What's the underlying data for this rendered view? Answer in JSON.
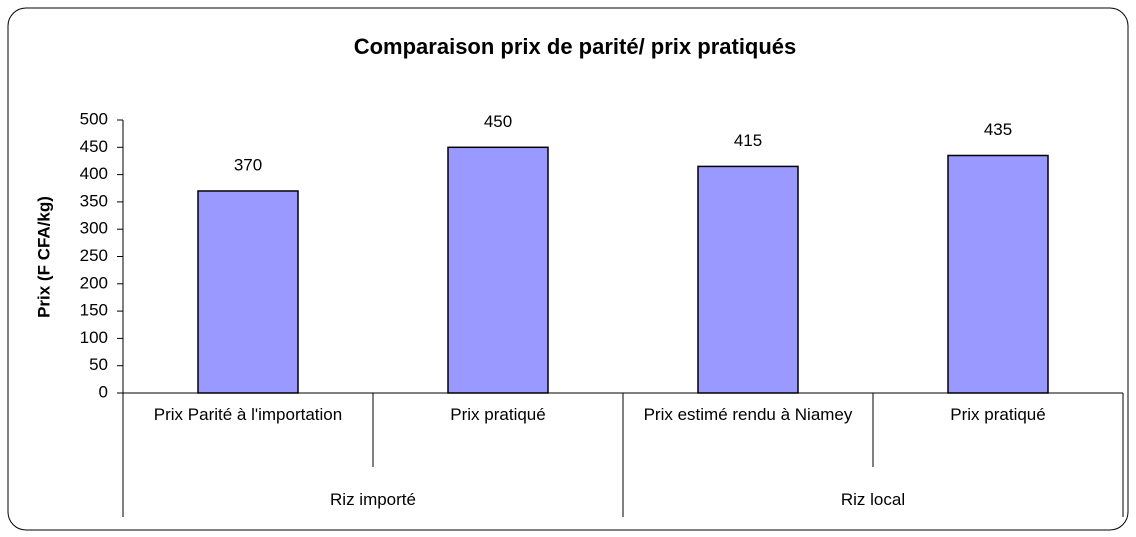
{
  "chart_data": {
    "type": "bar",
    "title": "Comparaison prix de parité/ prix pratiqués",
    "y_label": "Prix (F CFA/kg)",
    "groups": [
      {
        "label": "Riz importé",
        "categories": [
          "Prix Parité à l'importation",
          "Prix pratiqué"
        ],
        "values": [
          370,
          450
        ]
      },
      {
        "label": "Riz local",
        "categories": [
          "Prix estimé rendu à Niamey",
          "Prix pratiqué"
        ],
        "values": [
          415,
          435
        ]
      }
    ],
    "color": "#9999ff",
    "ylim": [
      0,
      500
    ],
    "yticks": [
      0,
      50,
      100,
      150,
      200,
      250,
      300,
      350,
      400,
      450,
      500
    ],
    "grid": false
  }
}
